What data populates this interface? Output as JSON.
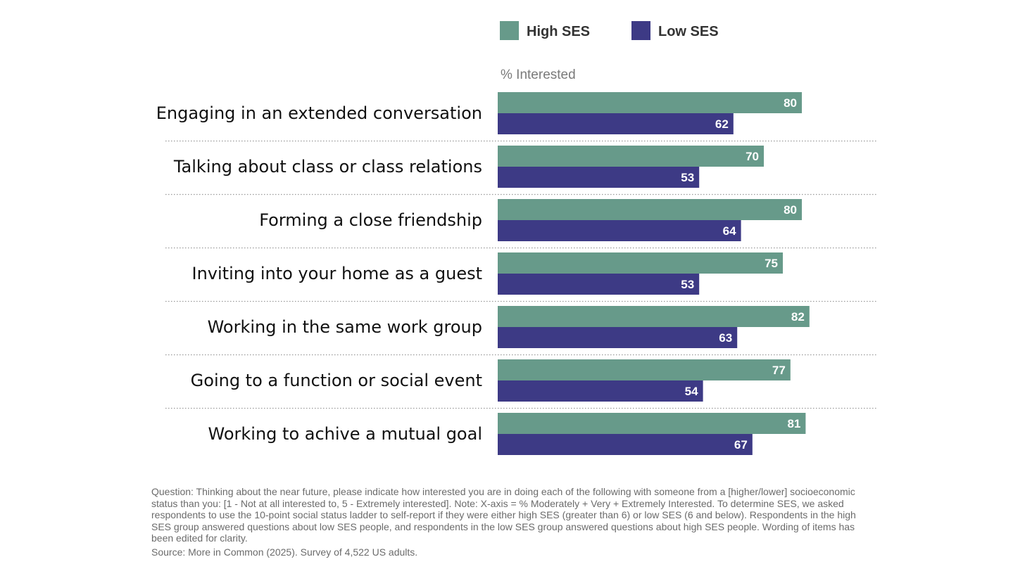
{
  "chart_data": {
    "type": "bar",
    "orientation": "horizontal",
    "axis_label": "% Interested",
    "categories": [
      "Engaging in an extended conversation",
      "Talking about class or class relations",
      "Forming a close friendship",
      "Inviting into your home as a guest",
      "Working in the same work group",
      "Going to a function or social event",
      "Working to achive a mutual goal"
    ],
    "series": [
      {
        "name": "High SES",
        "color": "#679a8a",
        "values": [
          80,
          70,
          80,
          75,
          82,
          77,
          81
        ]
      },
      {
        "name": "Low SES",
        "color": "#3d3a85",
        "values": [
          62,
          53,
          64,
          53,
          63,
          54,
          67
        ]
      }
    ],
    "xlim": [
      0,
      100
    ],
    "legend_position": "top",
    "data_labels": true,
    "grid": false,
    "row_separators": "dotted"
  },
  "footnote": {
    "question": "Question:  Thinking about the near future, please indicate how interested you are in doing each of the following with someone from a [higher/lower] socioeconomic status than you: [1 - Not at all interested to, 5 - Extremely interested].  Note: X-axis = % Moderately + Very + Extremely Interested.  To determine SES, we asked respondents to use the 10-point social status ladder to self-report if they were either high SES (greater than 6) or low SES (6 and below). Respondents in the high SES group answered questions about low SES people, and respondents in the low SES group answered questions about high SES people. Wording of items has been edited for clarity.",
    "source": "Source: More in Common (2025). Survey of 4,522 US adults."
  }
}
